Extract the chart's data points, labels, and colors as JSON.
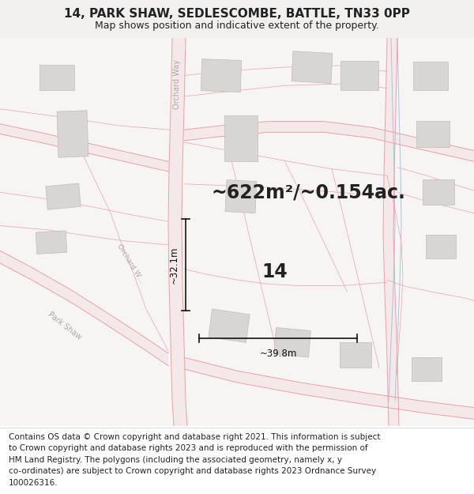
{
  "title": "14, PARK SHAW, SEDLESCOMBE, BATTLE, TN33 0PP",
  "subtitle": "Map shows position and indicative extent of the property.",
  "area_text": "~622m²/~0.154ac.",
  "label_14": "14",
  "dim_width": "~39.8m",
  "dim_height": "~32.1m",
  "footer_lines": [
    "Contains OS data © Crown copyright and database right 2021. This information is subject",
    "to Crown copyright and database rights 2023 and is reproduced with the permission of",
    "HM Land Registry. The polygons (including the associated geometry, namely x, y",
    "co-ordinates) are subject to Crown copyright and database rights 2023 Ordnance Survey",
    "100026316."
  ],
  "bg_color": "#f2f0ef",
  "map_bg": "#f7f5f4",
  "footer_bg": "#ffffff",
  "road_line_color": "#e8a0a8",
  "road_fill_color": "#f5e8e9",
  "building_fill": "#d8d5d3",
  "building_edge": "#c0bcba",
  "polygon_fill_color": "#ffffff",
  "polygon_edge_color": "#dd1122",
  "blue_line_color": "#aac4d8",
  "dim_color": "#111111",
  "text_color": "#222222",
  "road_label_color": "#aaaaaa",
  "title_fontsize": 11,
  "subtitle_fontsize": 9,
  "area_fontsize": 17,
  "num_fontsize": 17,
  "footer_fontsize": 7.5,
  "dim_fontsize": 8.5
}
